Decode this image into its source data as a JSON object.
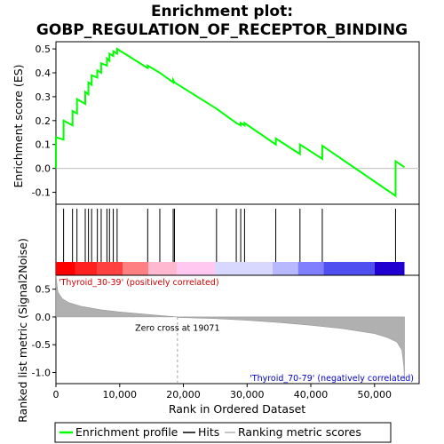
{
  "chart_data": {
    "type": "line",
    "title_line1": "Enrichment plot:",
    "title_line2": "GOBP_REGULATION_OF_RECEPTOR_BINDING",
    "es_panel": {
      "ylabel": "Enrichment score (ES)",
      "ylim": [
        -0.15,
        0.53
      ],
      "yticks": [
        -0.1,
        0.0,
        0.1,
        0.2,
        0.3,
        0.4,
        0.5
      ],
      "ytick_labels": [
        "-0.1",
        "0.0",
        "0.1",
        "0.2",
        "0.3",
        "0.4",
        "0.5"
      ],
      "series_name": "Enrichment profile",
      "color": "#00ff00",
      "points": [
        [
          0,
          0.0
        ],
        [
          0,
          0.13
        ],
        [
          1200,
          0.12
        ],
        [
          1200,
          0.2
        ],
        [
          2600,
          0.18
        ],
        [
          2600,
          0.24
        ],
        [
          3300,
          0.23
        ],
        [
          3300,
          0.29
        ],
        [
          4600,
          0.27
        ],
        [
          4600,
          0.32
        ],
        [
          5100,
          0.31
        ],
        [
          5100,
          0.36
        ],
        [
          5600,
          0.35
        ],
        [
          5600,
          0.39
        ],
        [
          6500,
          0.38
        ],
        [
          6500,
          0.41
        ],
        [
          7100,
          0.4
        ],
        [
          7100,
          0.44
        ],
        [
          8000,
          0.43
        ],
        [
          8000,
          0.46
        ],
        [
          8400,
          0.45
        ],
        [
          8400,
          0.48
        ],
        [
          9000,
          0.47
        ],
        [
          9000,
          0.49
        ],
        [
          9600,
          0.48
        ],
        [
          9600,
          0.5
        ],
        [
          14400,
          0.42
        ],
        [
          14400,
          0.43
        ],
        [
          16300,
          0.4
        ],
        [
          16300,
          0.4
        ],
        [
          18400,
          0.36
        ],
        [
          18400,
          0.37
        ],
        [
          18600,
          0.36
        ],
        [
          25200,
          0.25
        ],
        [
          28300,
          0.19
        ],
        [
          29000,
          0.18
        ],
        [
          29000,
          0.19
        ],
        [
          29600,
          0.18
        ],
        [
          29600,
          0.19
        ],
        [
          34500,
          0.1
        ],
        [
          34500,
          0.125
        ],
        [
          38300,
          0.06
        ],
        [
          38300,
          0.1
        ],
        [
          41800,
          0.04
        ],
        [
          41800,
          0.095
        ],
        [
          53300,
          -0.115
        ],
        [
          53300,
          0.03
        ],
        [
          54700,
          0.005
        ]
      ]
    },
    "hits": {
      "label": "Hits",
      "positions": [
        0,
        1200,
        2600,
        3300,
        4600,
        5100,
        5600,
        6500,
        7100,
        8000,
        8400,
        9000,
        9600,
        14400,
        16300,
        18400,
        18600,
        25200,
        28300,
        29000,
        29600,
        34500,
        38300,
        41800,
        53300
      ]
    },
    "heatmap_bar": {
      "label_pos": "'Thyroid_30-39' (positively correlated)",
      "label_neg": "'Thyroid_70-79' (negatively correlated)",
      "segments": [
        {
          "from": 0,
          "to": 3000,
          "color": "#ff0000"
        },
        {
          "from": 3000,
          "to": 6500,
          "color": "#ff2020"
        },
        {
          "from": 6500,
          "to": 10500,
          "color": "#ff4040"
        },
        {
          "from": 10500,
          "to": 14500,
          "color": "#ff8080"
        },
        {
          "from": 14500,
          "to": 19000,
          "color": "#ffb8d0"
        },
        {
          "from": 19000,
          "to": 25000,
          "color": "#ffc8f0"
        },
        {
          "from": 25000,
          "to": 34000,
          "color": "#d8d8ff"
        },
        {
          "from": 34000,
          "to": 38000,
          "color": "#b8b8ff"
        },
        {
          "from": 38000,
          "to": 42000,
          "color": "#8080ff"
        },
        {
          "from": 42000,
          "to": 50000,
          "color": "#5050f0"
        },
        {
          "from": 50000,
          "to": 54700,
          "color": "#2000d0"
        }
      ]
    },
    "metric_panel": {
      "ylabel": "Ranked list metric (Signal2Noise)",
      "ylim": [
        -1.2,
        0.75
      ],
      "yticks": [
        -1.0,
        -0.5,
        0.0,
        0.5
      ],
      "ytick_labels": [
        "-1.0",
        "-0.5",
        "0.0",
        "0.5"
      ],
      "series_name": "Ranking metric scores",
      "fill_color": "#b0b0b0",
      "zero_cross_label": "Zero cross at 19071",
      "zero_cross": 19071,
      "points": [
        [
          0,
          0.75
        ],
        [
          300,
          0.45
        ],
        [
          1000,
          0.33
        ],
        [
          2000,
          0.26
        ],
        [
          4000,
          0.19
        ],
        [
          7000,
          0.13
        ],
        [
          10000,
          0.09
        ],
        [
          14000,
          0.05
        ],
        [
          17000,
          0.02
        ],
        [
          19071,
          0.0
        ],
        [
          19071,
          -0.01
        ],
        [
          25000,
          -0.03
        ],
        [
          30000,
          -0.06
        ],
        [
          35000,
          -0.1
        ],
        [
          40000,
          -0.15
        ],
        [
          45000,
          -0.21
        ],
        [
          50000,
          -0.3
        ],
        [
          52000,
          -0.37
        ],
        [
          53500,
          -0.45
        ],
        [
          54300,
          -0.6
        ],
        [
          54600,
          -0.9
        ],
        [
          54700,
          -1.15
        ]
      ]
    },
    "x_axis": {
      "xlabel": "Rank in Ordered Dataset",
      "xlim": [
        0,
        57000
      ],
      "xticks": [
        0,
        10000,
        20000,
        30000,
        40000,
        50000
      ],
      "xtick_labels": [
        "0",
        "10,000",
        "20,000",
        "30,000",
        "40,000",
        "50,000"
      ],
      "n_genes": 54700
    },
    "legend": {
      "placement": "bottom",
      "items": [
        {
          "name": "Enrichment profile",
          "color": "#00ff00"
        },
        {
          "name": "Hits",
          "color": "#000000"
        },
        {
          "name": "Ranking metric scores",
          "color": "#b0b0b0"
        }
      ]
    }
  }
}
